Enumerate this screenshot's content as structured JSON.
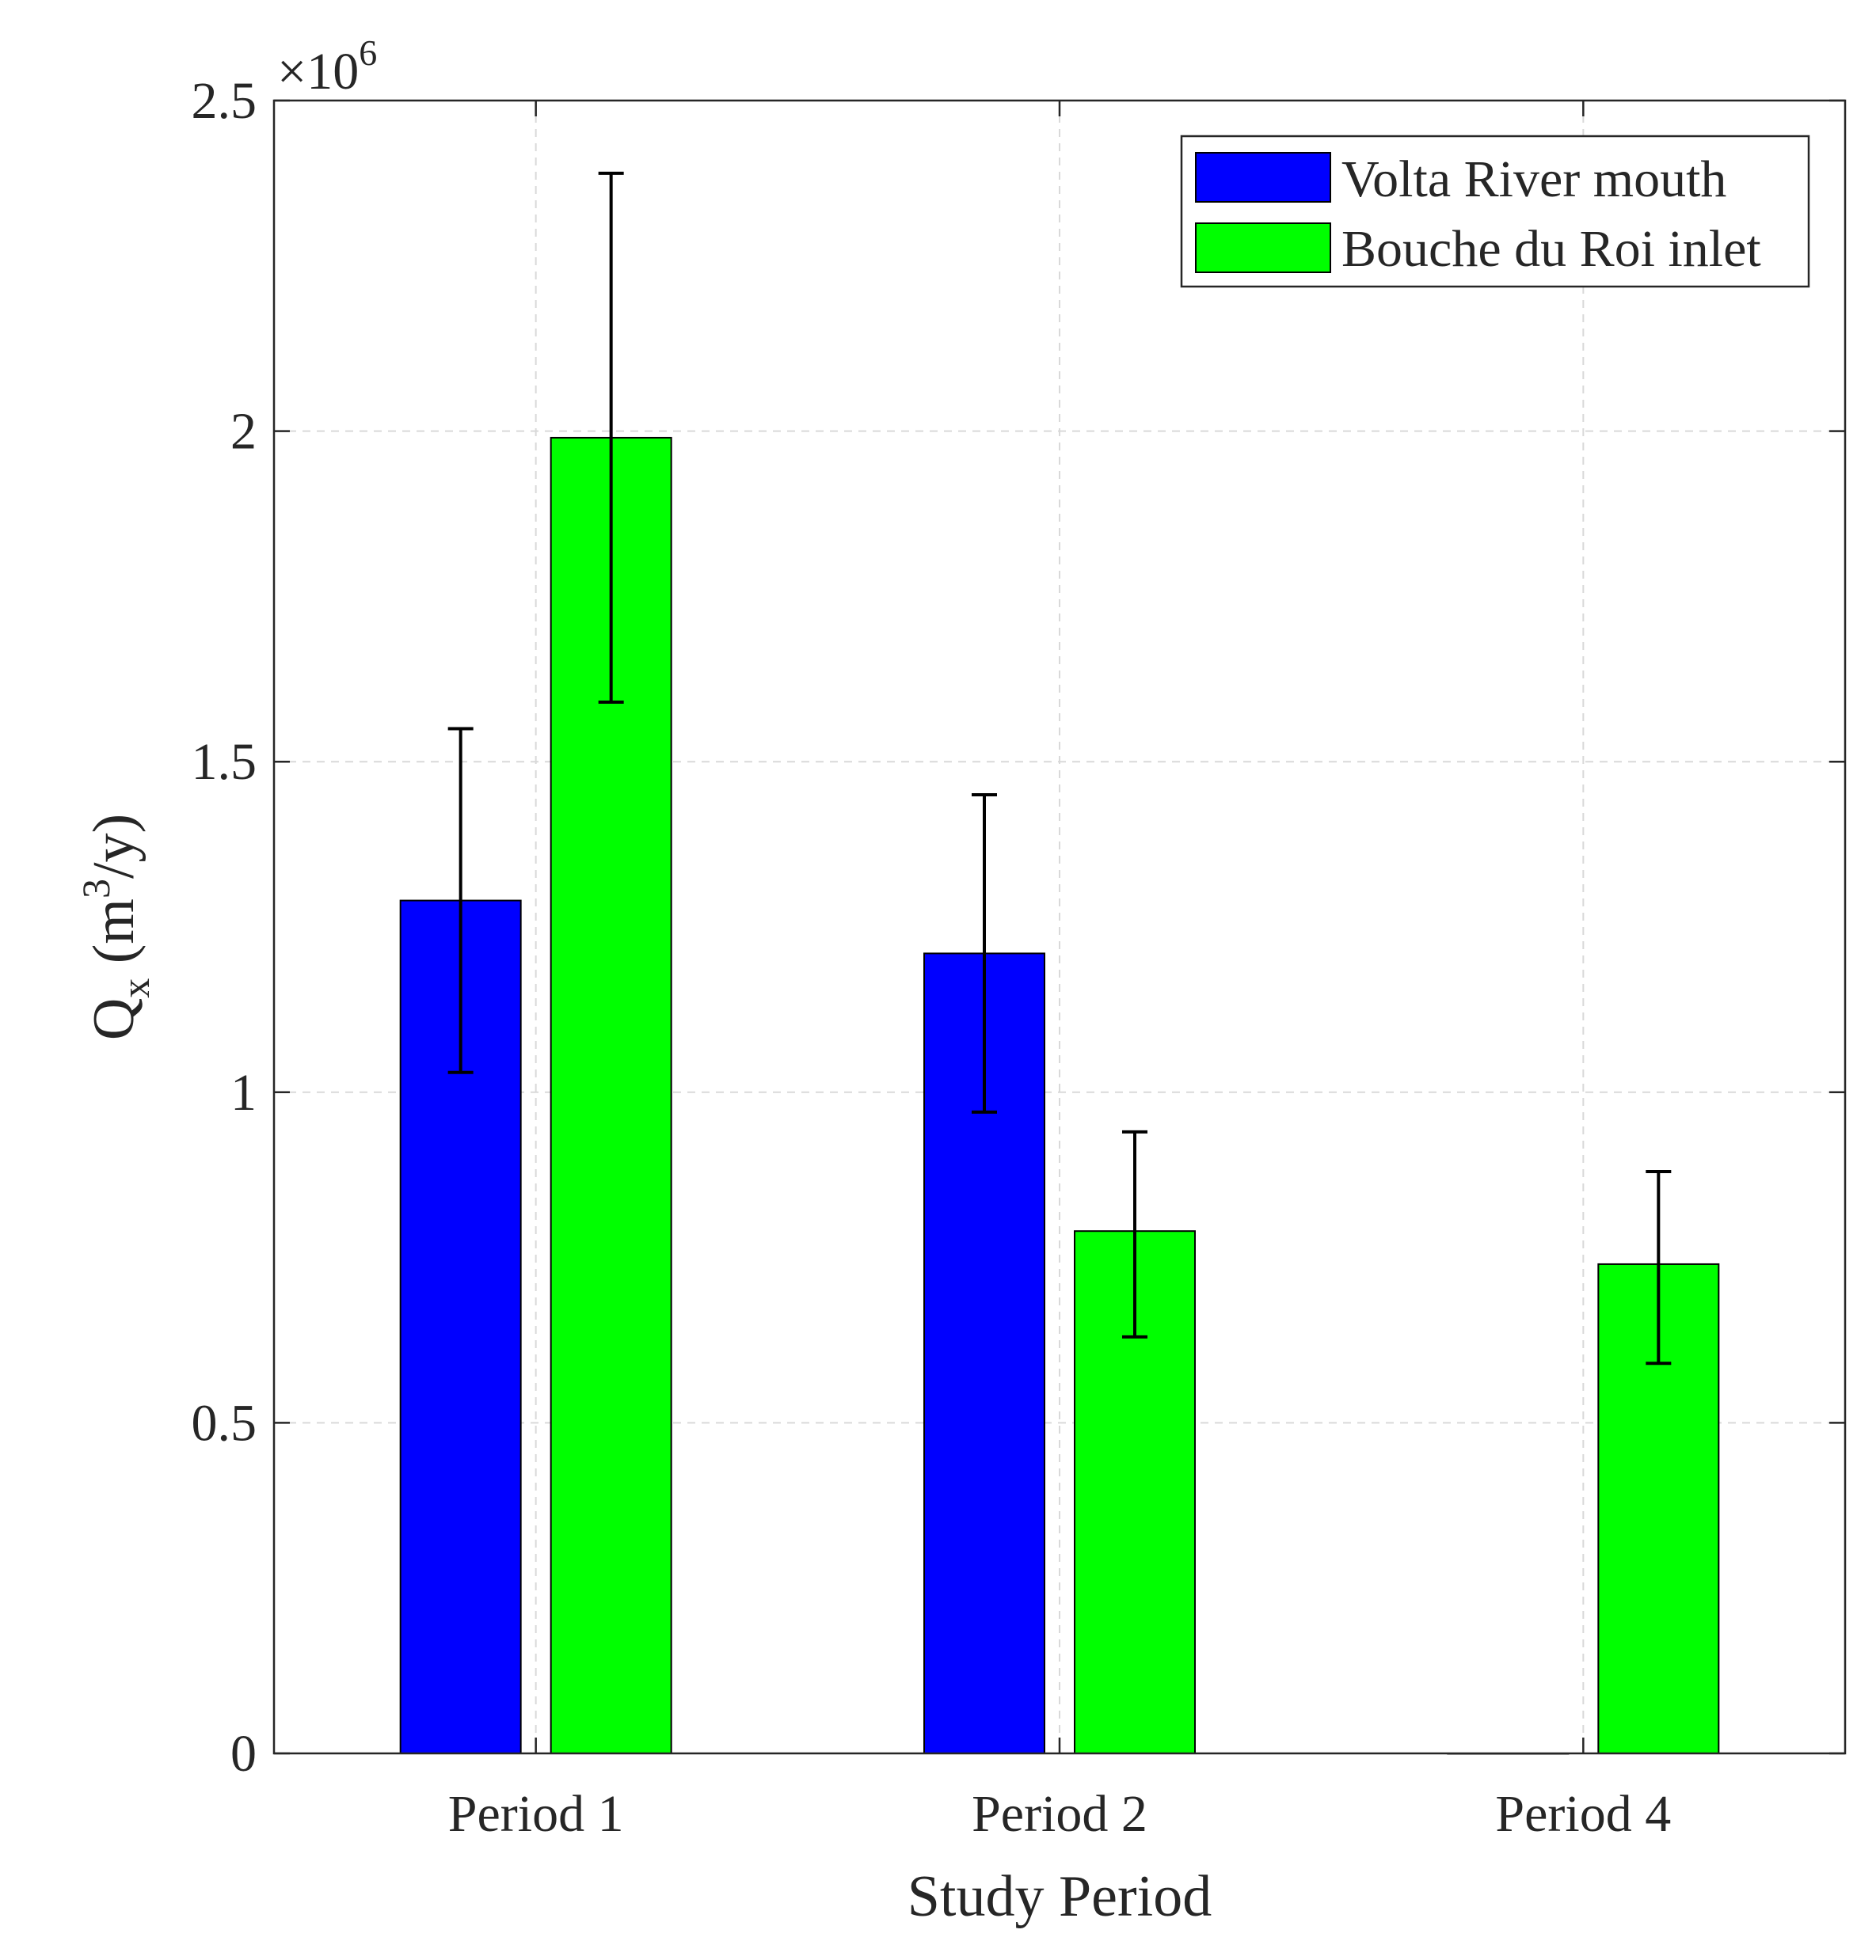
{
  "chart_data": {
    "type": "bar",
    "title": "",
    "xlabel": "Study Period",
    "ylabel": {
      "main": "Q",
      "subscript": "x",
      "unit_open": " (m",
      "unit_superscript": "3",
      "unit_close": "/y)"
    },
    "y_multiplier": {
      "prefix": "×10",
      "exponent": "6"
    },
    "categories": [
      "Period 1",
      "Period 2",
      "Period 4"
    ],
    "series": [
      {
        "name": "Volta River mouth",
        "color": "#0000ff",
        "values": [
          1.29,
          1.21,
          0
        ],
        "errors": [
          [
            1.03,
            1.55
          ],
          [
            0.97,
            1.45
          ],
          [
            null,
            null
          ]
        ]
      },
      {
        "name": "Bouche du Roi inlet",
        "color": "#00ff00",
        "values": [
          1.99,
          0.79,
          0.74
        ],
        "errors": [
          [
            1.59,
            2.39
          ],
          [
            0.63,
            0.94
          ],
          [
            0.59,
            0.88
          ]
        ]
      }
    ],
    "ylim": [
      0,
      2.5
    ],
    "yticks": [
      "0",
      "0.5",
      "1",
      "1.5",
      "2",
      "2.5"
    ],
    "ytick_values": [
      0,
      0.5,
      1,
      1.5,
      2,
      2.5
    ],
    "grid": true,
    "legend_position": "top-right"
  }
}
